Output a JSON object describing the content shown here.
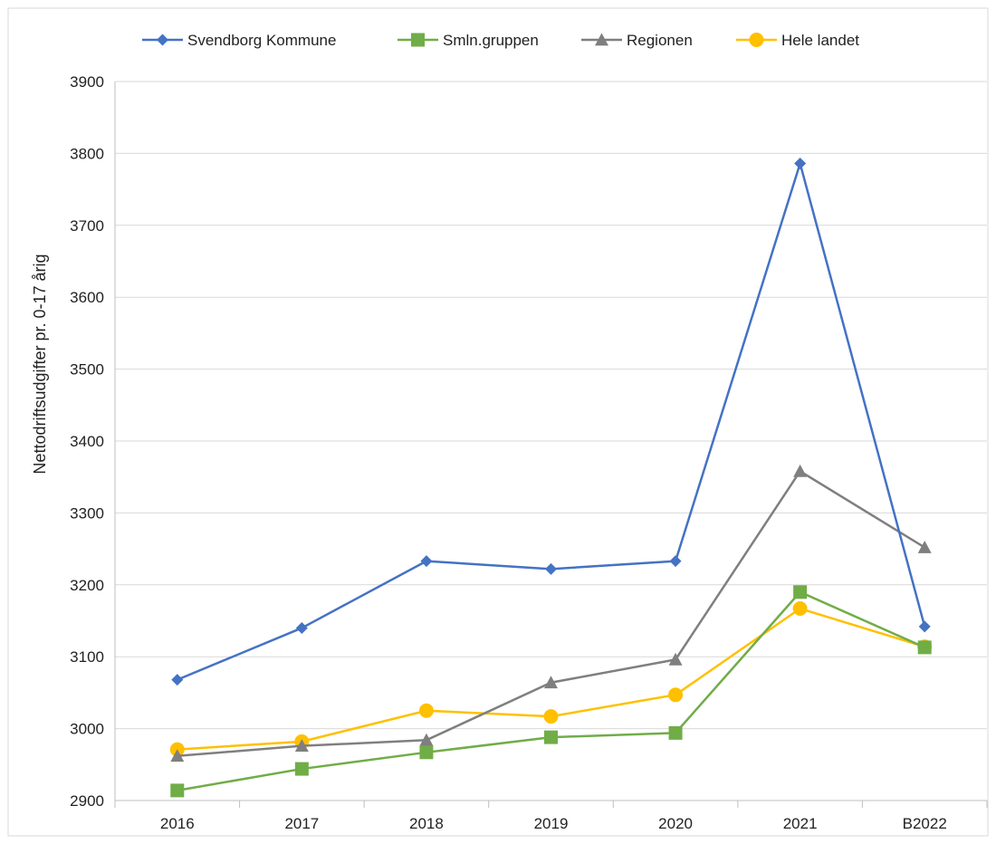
{
  "chart_data": {
    "type": "line",
    "categories": [
      "2016",
      "2017",
      "2018",
      "2019",
      "2020",
      "2021",
      "B2022"
    ],
    "ylabel": "Nettodriftsudgifter pr. 0-17 årig",
    "ylim": [
      2900,
      3900
    ],
    "yticks": [
      2900,
      3000,
      3100,
      3200,
      3300,
      3400,
      3500,
      3600,
      3700,
      3800,
      3900
    ],
    "grid": true,
    "legend_position": "top",
    "series": [
      {
        "name": "Svendborg Kommune",
        "color": "#4472C4",
        "marker": "diamond",
        "values": [
          3068,
          3140,
          3233,
          3222,
          3233,
          3786,
          3142
        ]
      },
      {
        "name": "Smln.gruppen",
        "color": "#70AD47",
        "marker": "square",
        "values": [
          2914,
          2944,
          2967,
          2988,
          2994,
          3190,
          3113
        ]
      },
      {
        "name": "Regionen",
        "color": "#7F7F7F",
        "marker": "triangle",
        "values": [
          2962,
          2976,
          2984,
          3064,
          3096,
          3358,
          3252
        ]
      },
      {
        "name": "Hele landet",
        "color": "#FFC000",
        "marker": "circle",
        "values": [
          2971,
          2982,
          3025,
          3017,
          3047,
          3167,
          3114
        ]
      }
    ]
  }
}
